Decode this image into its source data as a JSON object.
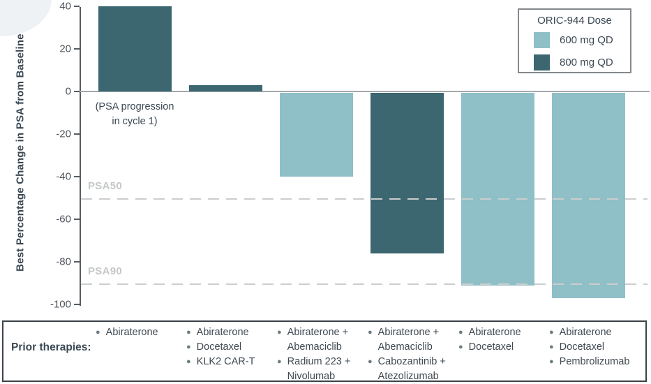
{
  "chart_data": {
    "type": "bar",
    "title": "",
    "xlabel": "",
    "ylabel": "Best Percentage Change in PSA from Baseline",
    "ylim": [
      -100,
      40
    ],
    "yticks": [
      40,
      20,
      0,
      -20,
      -40,
      -60,
      -80,
      -100
    ],
    "grid": false,
    "legend_position": "top-right",
    "bars": [
      {
        "value": 40,
        "dose": "800 mg QD",
        "annotation": "(PSA progression\nin cycle 1)"
      },
      {
        "value": 3,
        "dose": "800 mg QD"
      },
      {
        "value": -40,
        "dose": "600 mg QD"
      },
      {
        "value": -76,
        "dose": "800 mg QD"
      },
      {
        "value": -91,
        "dose": "600 mg QD"
      },
      {
        "value": -97,
        "dose": "600 mg QD"
      }
    ],
    "thresholds": [
      {
        "label": "PSA50",
        "value": -50
      },
      {
        "label": "PSA90",
        "value": -90
      }
    ],
    "legend": {
      "title": "ORIC-944 Dose",
      "items": [
        {
          "label": "600 mg QD",
          "color": "#8FBFC7"
        },
        {
          "label": "800 mg QD",
          "color": "#3C6770"
        }
      ]
    }
  },
  "dose_colors": {
    "600 mg QD": "#8FBFC7",
    "800 mg QD": "#3C6770"
  },
  "prior_therapies": {
    "label": "Prior therapies:",
    "columns": [
      {
        "items": [
          "Abiraterone"
        ]
      },
      {
        "items": [
          "Abiraterone",
          "Docetaxel",
          "KLK2 CAR-T"
        ]
      },
      {
        "items": [
          "Abiraterone +\nAbemaciclib",
          "Radium 223 +\nNivolumab"
        ]
      },
      {
        "items": [
          "Abiraterone +\nAbemaciclib",
          "Cabozantinib +\nAtezolizumab"
        ]
      },
      {
        "items": [
          "Abiraterone",
          "Docetaxel"
        ]
      },
      {
        "items": [
          "Abiraterone",
          "Docetaxel",
          "Pembrolizumab"
        ]
      }
    ]
  }
}
